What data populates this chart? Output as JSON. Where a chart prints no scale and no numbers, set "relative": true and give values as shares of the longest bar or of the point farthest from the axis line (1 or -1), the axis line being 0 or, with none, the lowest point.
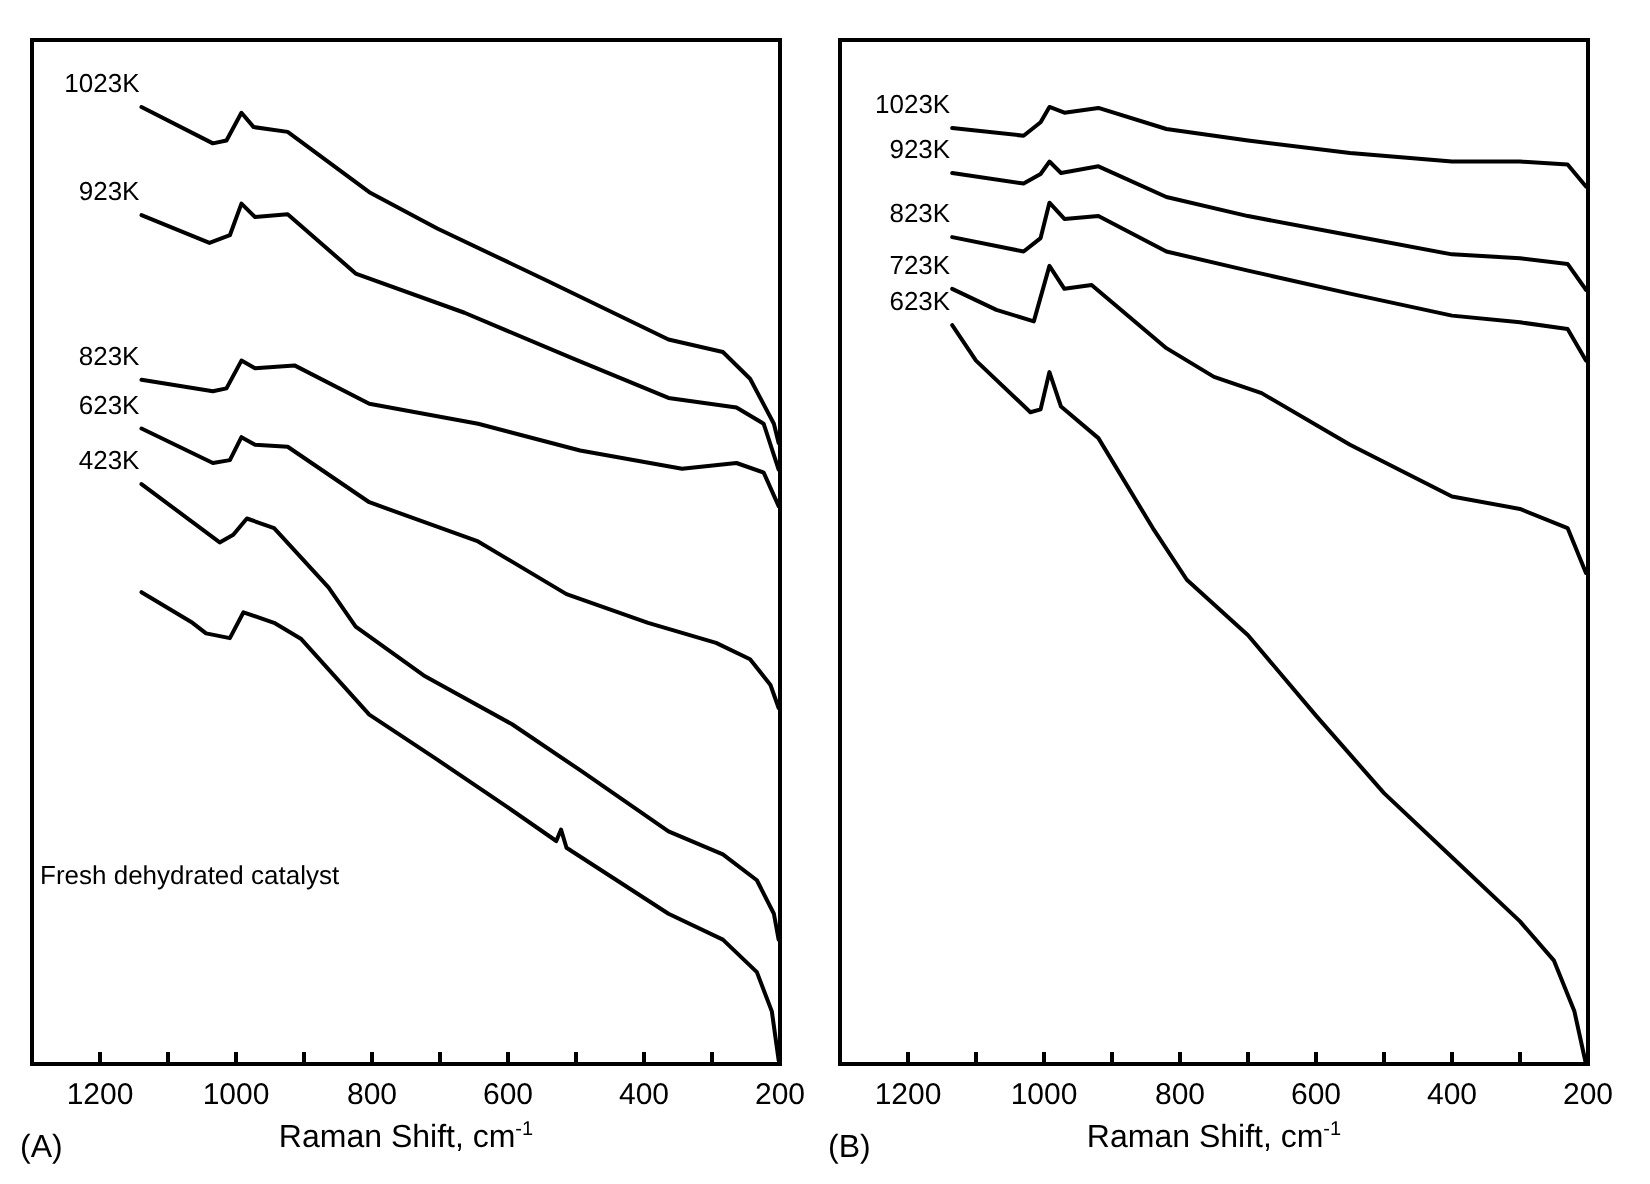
{
  "chart_data": [
    {
      "type": "line",
      "xlabel": "Raman Shift, cm$^{-1}$",
      "annotations": [
        "(A)",
        "Fresh dehydrated catalyst"
      ],
      "relative": true,
      "legend": false,
      "grid": false,
      "marker": "none",
      "line_style": "solid",
      "xlim": [
        1300,
        200
      ],
      "xticks": [
        1200,
        {
          "value": 1100,
          "label": null
        },
        1000,
        {
          "value": 900,
          "label": null
        },
        800,
        {
          "value": 700,
          "label": null
        },
        600,
        {
          "value": 500,
          "label": null
        },
        400,
        {
          "value": 300,
          "label": null
        },
        200
      ],
      "series": [
        {
          "name": "1023K",
          "color": "#000000",
          "x": [
            1139,
            1034,
            1014,
            992,
            974,
            924,
            804,
            704,
            544,
            364,
            284,
            244,
            209,
            202
          ],
          "values": [
            1.0,
            0.962,
            0.965,
            0.994,
            0.979,
            0.974,
            0.911,
            0.873,
            0.819,
            0.757,
            0.744,
            0.716,
            0.669,
            0.649
          ]
        },
        {
          "name": "923K",
          "color": "#000000",
          "x": [
            1139,
            1039,
            1009,
            992,
            972,
            924,
            824,
            664,
            504,
            364,
            264,
            224,
            202
          ],
          "values": [
            0.887,
            0.858,
            0.866,
            0.899,
            0.885,
            0.888,
            0.826,
            0.785,
            0.737,
            0.696,
            0.686,
            0.669,
            0.621
          ]
        },
        {
          "name": "823K",
          "color": "#000000",
          "x": [
            1139,
            1034,
            1014,
            992,
            972,
            914,
            804,
            644,
            494,
            344,
            264,
            224,
            202
          ],
          "values": [
            0.715,
            0.703,
            0.706,
            0.735,
            0.727,
            0.73,
            0.69,
            0.669,
            0.641,
            0.622,
            0.628,
            0.618,
            0.583
          ]
        },
        {
          "name": "623K",
          "color": "#000000",
          "x": [
            1139,
            1034,
            1009,
            992,
            972,
            924,
            804,
            644,
            514,
            394,
            294,
            244,
            214,
            202
          ],
          "values": [
            0.664,
            0.628,
            0.631,
            0.655,
            0.647,
            0.645,
            0.587,
            0.546,
            0.491,
            0.461,
            0.44,
            0.423,
            0.396,
            0.372
          ]
        },
        {
          "name": "423K",
          "color": "#000000",
          "x": [
            1139,
            1024,
            1004,
            984,
            944,
            864,
            824,
            724,
            594,
            494,
            364,
            284,
            234,
            209,
            202
          ],
          "values": [
            0.606,
            0.545,
            0.553,
            0.57,
            0.56,
            0.498,
            0.457,
            0.406,
            0.355,
            0.307,
            0.243,
            0.219,
            0.192,
            0.157,
            0.13
          ]
        },
        {
          "color": "#000000",
          "x": [
            1139,
            1064,
            1044,
            1009,
            989,
            944,
            904,
            804,
            704,
            604,
            529,
            522,
            514,
            364,
            284,
            234,
            212,
            202,
            200
          ],
          "values": [
            0.493,
            0.461,
            0.45,
            0.445,
            0.472,
            0.461,
            0.444,
            0.365,
            0.318,
            0.27,
            0.233,
            0.245,
            0.226,
            0.157,
            0.13,
            0.096,
            0.055,
            0.004,
            0
          ]
        }
      ]
    },
    {
      "type": "line",
      "xlabel": "Raman Shift, cm$^{-1}$",
      "annotations": [
        "(B)"
      ],
      "relative": true,
      "legend": false,
      "grid": false,
      "marker": "none",
      "line_style": "solid",
      "xlim": [
        1300,
        200
      ],
      "xticks": [
        1200,
        {
          "value": 1100,
          "label": null
        },
        1000,
        {
          "value": 900,
          "label": null
        },
        800,
        {
          "value": 700,
          "label": null
        },
        600,
        {
          "value": 500,
          "label": null
        },
        400,
        {
          "value": 300,
          "label": null
        },
        200
      ],
      "series": [
        {
          "name": "1023K",
          "color": "#000000",
          "x": [
            1135,
            1030,
            1005,
            992,
            970,
            920,
            820,
            700,
            550,
            400,
            300,
            230,
            203
          ],
          "values": [
            0.978,
            0.97,
            0.984,
            1.0,
            0.994,
            0.999,
            0.977,
            0.965,
            0.952,
            0.943,
            0.943,
            0.94,
            0.917
          ]
        },
        {
          "name": "923K",
          "color": "#000000",
          "x": [
            1135,
            1030,
            1005,
            992,
            975,
            920,
            820,
            700,
            550,
            400,
            300,
            230,
            203
          ],
          "values": [
            0.931,
            0.92,
            0.93,
            0.943,
            0.931,
            0.938,
            0.906,
            0.886,
            0.866,
            0.846,
            0.842,
            0.836,
            0.809
          ]
        },
        {
          "name": "823K",
          "color": "#000000",
          "x": [
            1135,
            1030,
            1005,
            992,
            970,
            920,
            820,
            700,
            550,
            400,
            300,
            230,
            203
          ],
          "values": [
            0.864,
            0.849,
            0.863,
            0.9,
            0.883,
            0.886,
            0.849,
            0.829,
            0.805,
            0.782,
            0.775,
            0.768,
            0.735
          ]
        },
        {
          "name": "723K",
          "color": "#000000",
          "x": [
            1135,
            1070,
            1015,
            992,
            970,
            930,
            820,
            750,
            680,
            550,
            400,
            300,
            230,
            203
          ],
          "values": [
            0.81,
            0.788,
            0.776,
            0.834,
            0.81,
            0.814,
            0.748,
            0.718,
            0.701,
            0.647,
            0.593,
            0.58,
            0.56,
            0.513
          ]
        },
        {
          "name": "623K",
          "color": "#000000",
          "x": [
            1135,
            1100,
            1020,
            1005,
            992,
            975,
            920,
            840,
            790,
            700,
            600,
            500,
            400,
            300,
            250,
            220,
            203
          ],
          "values": [
            0.772,
            0.735,
            0.681,
            0.684,
            0.723,
            0.687,
            0.654,
            0.56,
            0.506,
            0.448,
            0.364,
            0.283,
            0.216,
            0.149,
            0.108,
            0.055,
            0
          ]
        }
      ]
    }
  ]
}
